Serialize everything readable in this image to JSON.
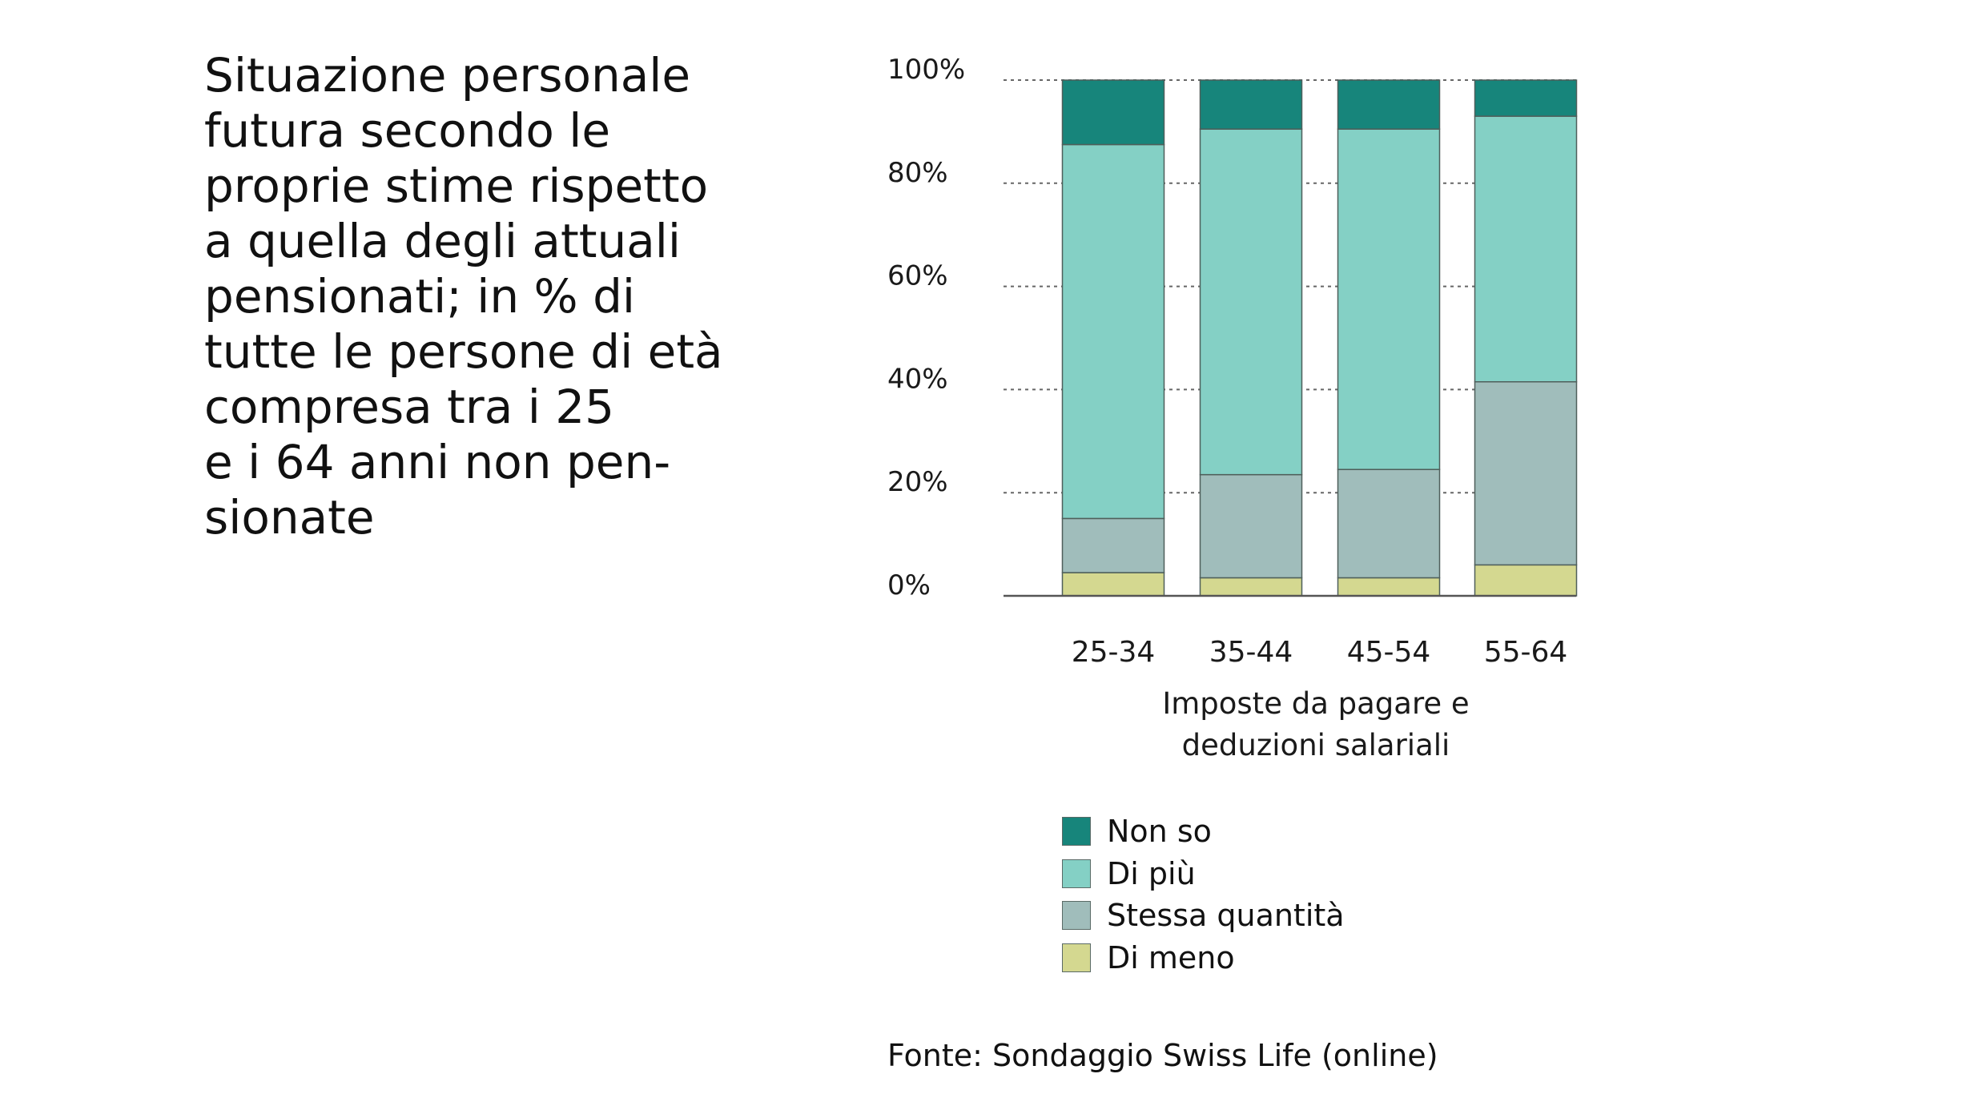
{
  "title_lines": [
    "Situazione personale",
    "futura secondo le",
    "proprie stime rispetto",
    "a quella degli attuali",
    "pensionati; in % di",
    "tutte le persone di età",
    "compresa tra i 25",
    "e i 64 anni non pen-",
    "sionate"
  ],
  "source": "Fonte: Sondaggio Swiss Life (online)",
  "chart_data": {
    "type": "bar",
    "stacked": true,
    "title": "Situazione personale futura secondo le proprie stime rispetto a quella degli attuali pensionati; in % di tutte le persone di età compresa tra i 25 e i 64 anni non pensionate",
    "xlabel_lines": [
      "Imposte da pagare e",
      "deduzioni salariali"
    ],
    "ylabel": "",
    "ylim": [
      0,
      100
    ],
    "yticks": [
      0,
      20,
      40,
      60,
      80,
      100
    ],
    "ytick_labels": [
      "0%",
      "20%",
      "40%",
      "60%",
      "80%",
      "100%"
    ],
    "categories": [
      "25-34",
      "35-44",
      "45-54",
      "55-64"
    ],
    "grid": "horizontal dotted",
    "legend_position": "bottom",
    "series": [
      {
        "name": "Di meno",
        "color": "#d4d890",
        "values": [
          4.5,
          3.5,
          3.5,
          6
        ]
      },
      {
        "name": "Stessa quantità",
        "color": "#a0bdbb",
        "values": [
          10.5,
          20,
          21,
          35.5
        ]
      },
      {
        "name": "Di più",
        "color": "#84d0c5",
        "values": [
          72.5,
          67,
          66,
          51.5
        ]
      },
      {
        "name": "Non so",
        "color": "#17857b",
        "values": [
          12.5,
          9.5,
          9.5,
          7
        ]
      }
    ]
  }
}
